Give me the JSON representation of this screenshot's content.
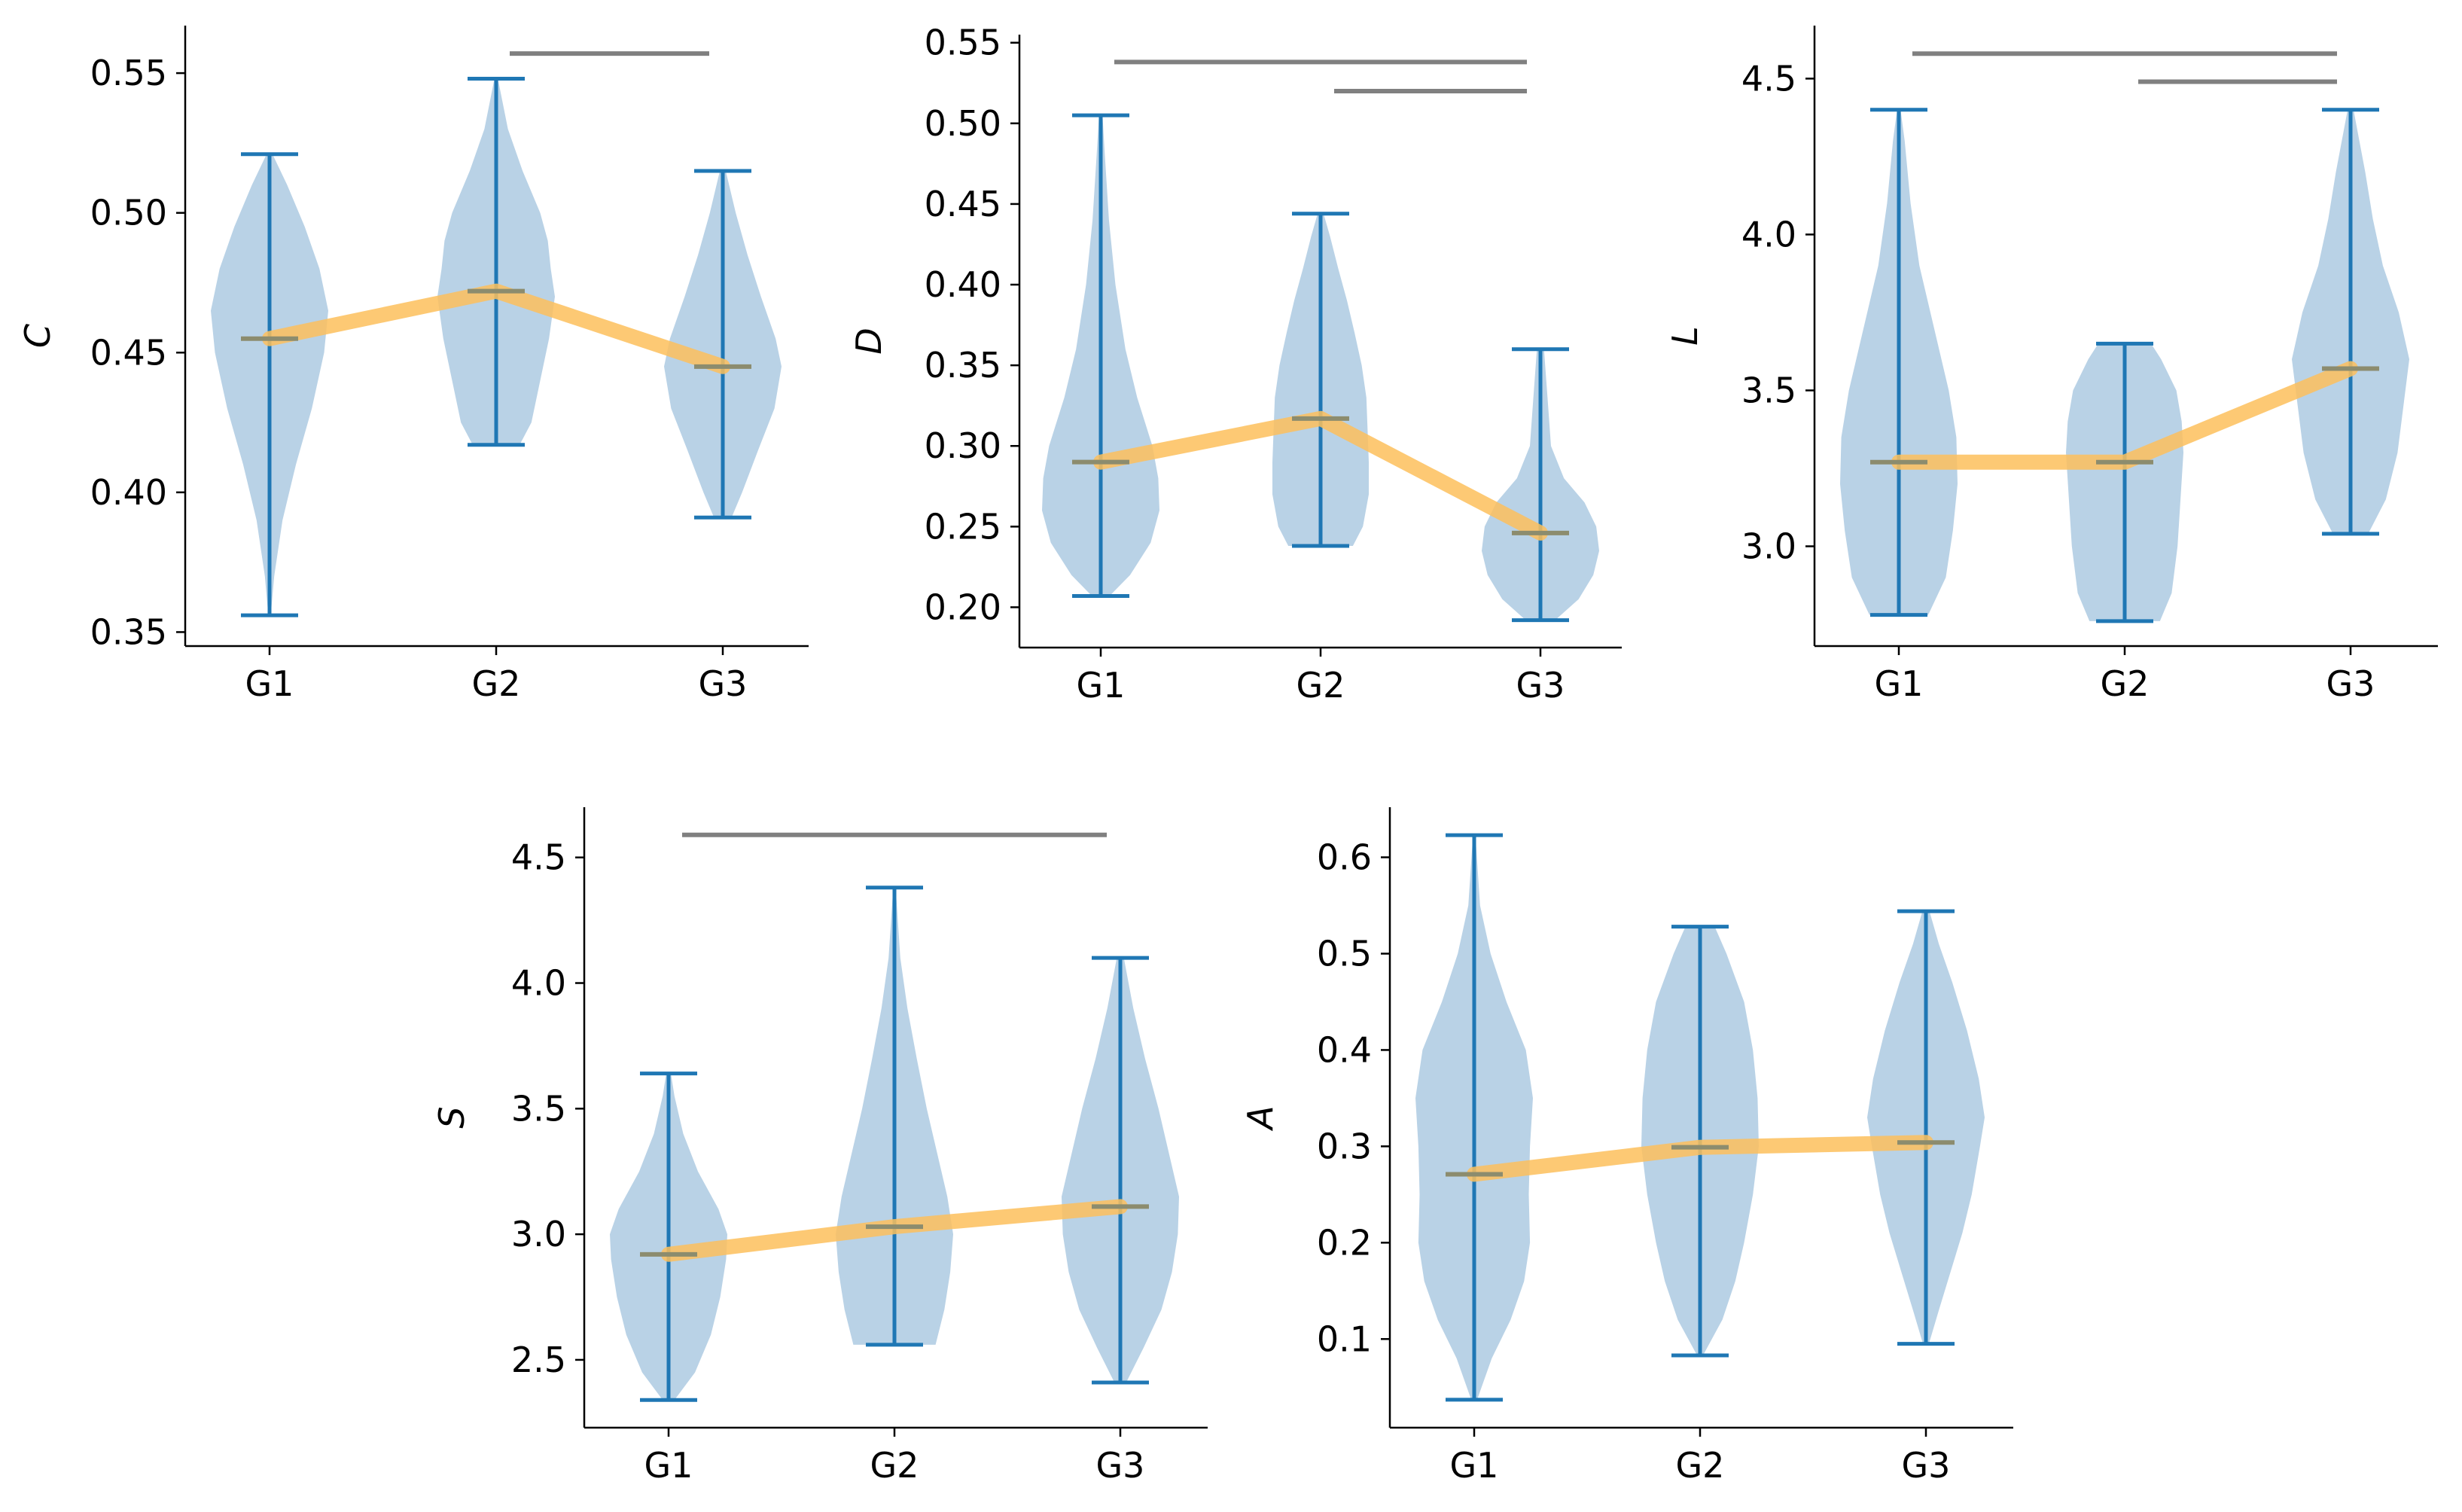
{
  "colors": {
    "violin_fill": "#b9d2e6",
    "whisker": "#1f77b4",
    "mean_line": "#fdbf5c",
    "median_marker": "#8c8c6e",
    "significance_bar": "#808080",
    "axis": "#000000"
  },
  "chart_data": [
    {
      "type": "violin",
      "ylabel": "C",
      "categories": [
        "G1",
        "G2",
        "G3"
      ],
      "ylim": [
        0.345,
        0.567
      ],
      "yticks": [
        0.35,
        0.4,
        0.45,
        0.5,
        0.55
      ],
      "ytick_labels": [
        "0.35",
        "0.40",
        "0.45",
        "0.50",
        "0.55"
      ],
      "min": [
        0.356,
        0.417,
        0.391
      ],
      "max": [
        0.521,
        0.548,
        0.515
      ],
      "median": [
        0.455,
        0.472,
        0.445
      ],
      "density": [
        [
          [
            0.356,
            0.02
          ],
          [
            0.37,
            0.08
          ],
          [
            0.39,
            0.22
          ],
          [
            0.41,
            0.45
          ],
          [
            0.43,
            0.72
          ],
          [
            0.45,
            0.93
          ],
          [
            0.465,
            1.0
          ],
          [
            0.48,
            0.85
          ],
          [
            0.495,
            0.6
          ],
          [
            0.51,
            0.3
          ],
          [
            0.521,
            0.05
          ]
        ],
        [
          [
            0.417,
            0.4
          ],
          [
            0.425,
            0.6
          ],
          [
            0.44,
            0.75
          ],
          [
            0.455,
            0.9
          ],
          [
            0.47,
            1.0
          ],
          [
            0.48,
            0.93
          ],
          [
            0.49,
            0.88
          ],
          [
            0.5,
            0.75
          ],
          [
            0.515,
            0.45
          ],
          [
            0.53,
            0.2
          ],
          [
            0.548,
            0.03
          ]
        ],
        [
          [
            0.391,
            0.15
          ],
          [
            0.4,
            0.33
          ],
          [
            0.415,
            0.6
          ],
          [
            0.43,
            0.88
          ],
          [
            0.445,
            1.0
          ],
          [
            0.455,
            0.9
          ],
          [
            0.47,
            0.65
          ],
          [
            0.485,
            0.42
          ],
          [
            0.5,
            0.22
          ],
          [
            0.515,
            0.05
          ]
        ]
      ],
      "significance": [
        {
          "from": "G2",
          "to": "G3",
          "y": 0.557
        }
      ]
    },
    {
      "type": "violin",
      "ylabel": "D",
      "categories": [
        "G1",
        "G2",
        "G3"
      ],
      "ylim": [
        0.175,
        0.555
      ],
      "yticks": [
        0.2,
        0.25,
        0.3,
        0.35,
        0.4,
        0.45,
        0.5,
        0.55
      ],
      "ytick_labels": [
        "0.20",
        "0.25",
        "0.30",
        "0.35",
        "0.40",
        "0.45",
        "0.50",
        "0.55"
      ],
      "min": [
        0.207,
        0.238,
        0.192
      ],
      "max": [
        0.505,
        0.444,
        0.36
      ],
      "median": [
        0.29,
        0.317,
        0.246
      ],
      "density": [
        [
          [
            0.207,
            0.15
          ],
          [
            0.22,
            0.5
          ],
          [
            0.24,
            0.85
          ],
          [
            0.26,
            1.0
          ],
          [
            0.28,
            0.98
          ],
          [
            0.3,
            0.88
          ],
          [
            0.33,
            0.62
          ],
          [
            0.36,
            0.42
          ],
          [
            0.4,
            0.25
          ],
          [
            0.44,
            0.14
          ],
          [
            0.48,
            0.07
          ],
          [
            0.505,
            0.03
          ]
        ],
        [
          [
            0.238,
            0.55
          ],
          [
            0.25,
            0.72
          ],
          [
            0.27,
            0.82
          ],
          [
            0.29,
            0.82
          ],
          [
            0.31,
            0.8
          ],
          [
            0.33,
            0.78
          ],
          [
            0.35,
            0.7
          ],
          [
            0.37,
            0.58
          ],
          [
            0.39,
            0.45
          ],
          [
            0.41,
            0.3
          ],
          [
            0.43,
            0.16
          ],
          [
            0.444,
            0.05
          ]
        ],
        [
          [
            0.192,
            0.25
          ],
          [
            0.205,
            0.65
          ],
          [
            0.22,
            0.9
          ],
          [
            0.235,
            1.0
          ],
          [
            0.25,
            0.95
          ],
          [
            0.265,
            0.75
          ],
          [
            0.28,
            0.4
          ],
          [
            0.3,
            0.18
          ],
          [
            0.33,
            0.12
          ],
          [
            0.36,
            0.06
          ]
        ]
      ],
      "significance": [
        {
          "from": "G1",
          "to": "G3",
          "y": 0.538
        },
        {
          "from": "G2",
          "to": "G3",
          "y": 0.52
        }
      ]
    },
    {
      "type": "violin",
      "ylabel": "L",
      "categories": [
        "G1",
        "G2",
        "G3"
      ],
      "ylim": [
        2.68,
        4.67
      ],
      "yticks": [
        3.0,
        3.5,
        4.0,
        4.5
      ],
      "ytick_labels": [
        "3.0",
        "3.5",
        "4.0",
        "4.5"
      ],
      "min": [
        2.78,
        2.76,
        3.04
      ],
      "max": [
        4.4,
        3.65,
        4.4
      ],
      "median": [
        3.27,
        3.27,
        3.57
      ],
      "density": [
        [
          [
            2.78,
            0.5
          ],
          [
            2.9,
            0.8
          ],
          [
            3.05,
            0.92
          ],
          [
            3.2,
            1.0
          ],
          [
            3.35,
            0.98
          ],
          [
            3.5,
            0.85
          ],
          [
            3.7,
            0.6
          ],
          [
            3.9,
            0.35
          ],
          [
            4.1,
            0.2
          ],
          [
            4.3,
            0.1
          ],
          [
            4.4,
            0.03
          ]
        ],
        [
          [
            2.76,
            0.6
          ],
          [
            2.85,
            0.8
          ],
          [
            3.0,
            0.9
          ],
          [
            3.15,
            0.95
          ],
          [
            3.3,
            1.0
          ],
          [
            3.4,
            0.97
          ],
          [
            3.5,
            0.88
          ],
          [
            3.6,
            0.62
          ],
          [
            3.65,
            0.45
          ]
        ],
        [
          [
            3.04,
            0.3
          ],
          [
            3.15,
            0.6
          ],
          [
            3.3,
            0.8
          ],
          [
            3.45,
            0.9
          ],
          [
            3.6,
            1.0
          ],
          [
            3.75,
            0.82
          ],
          [
            3.9,
            0.55
          ],
          [
            4.05,
            0.38
          ],
          [
            4.2,
            0.25
          ],
          [
            4.3,
            0.15
          ],
          [
            4.4,
            0.05
          ]
        ]
      ],
      "significance": [
        {
          "from": "G1",
          "to": "G3",
          "y": 4.58
        },
        {
          "from": "G2",
          "to": "G3",
          "y": 4.49
        }
      ]
    },
    {
      "type": "violin",
      "ylabel": "S",
      "categories": [
        "G1",
        "G2",
        "G3"
      ],
      "ylim": [
        2.23,
        4.7
      ],
      "yticks": [
        2.5,
        3.0,
        3.5,
        4.0,
        4.5
      ],
      "ytick_labels": [
        "2.5",
        "3.0",
        "3.5",
        "4.0",
        "4.5"
      ],
      "min": [
        2.34,
        2.56,
        2.41
      ],
      "max": [
        3.64,
        4.38,
        4.1
      ],
      "median": [
        2.92,
        3.03,
        3.11
      ],
      "density": [
        [
          [
            2.34,
            0.1
          ],
          [
            2.45,
            0.45
          ],
          [
            2.6,
            0.72
          ],
          [
            2.75,
            0.88
          ],
          [
            2.9,
            0.98
          ],
          [
            3.0,
            1.0
          ],
          [
            3.1,
            0.85
          ],
          [
            3.25,
            0.5
          ],
          [
            3.4,
            0.25
          ],
          [
            3.55,
            0.1
          ],
          [
            3.64,
            0.04
          ]
        ],
        [
          [
            2.56,
            0.7
          ],
          [
            2.7,
            0.85
          ],
          [
            2.85,
            0.95
          ],
          [
            3.0,
            1.0
          ],
          [
            3.15,
            0.9
          ],
          [
            3.3,
            0.75
          ],
          [
            3.5,
            0.55
          ],
          [
            3.7,
            0.38
          ],
          [
            3.9,
            0.22
          ],
          [
            4.1,
            0.1
          ],
          [
            4.38,
            0.02
          ]
        ],
        [
          [
            2.41,
            0.1
          ],
          [
            2.55,
            0.4
          ],
          [
            2.7,
            0.7
          ],
          [
            2.85,
            0.88
          ],
          [
            3.0,
            0.98
          ],
          [
            3.15,
            1.0
          ],
          [
            3.3,
            0.85
          ],
          [
            3.5,
            0.65
          ],
          [
            3.7,
            0.42
          ],
          [
            3.9,
            0.22
          ],
          [
            4.1,
            0.06
          ]
        ]
      ],
      "significance": [
        {
          "from": "G1",
          "to": "G3",
          "y": 4.59
        }
      ]
    },
    {
      "type": "violin",
      "ylabel": "A",
      "categories": [
        "G1",
        "G2",
        "G3"
      ],
      "ylim": [
        0.008,
        0.652
      ],
      "yticks": [
        0.1,
        0.2,
        0.3,
        0.4,
        0.5,
        0.6
      ],
      "ytick_labels": [
        "0.1",
        "0.2",
        "0.3",
        "0.4",
        "0.5",
        "0.6"
      ],
      "min": [
        0.037,
        0.083,
        0.095
      ],
      "max": [
        0.623,
        0.528,
        0.544
      ],
      "median": [
        0.271,
        0.299,
        0.304
      ],
      "density": [
        [
          [
            0.037,
            0.05
          ],
          [
            0.08,
            0.3
          ],
          [
            0.12,
            0.62
          ],
          [
            0.16,
            0.85
          ],
          [
            0.2,
            0.95
          ],
          [
            0.25,
            0.93
          ],
          [
            0.3,
            0.95
          ],
          [
            0.35,
            1.0
          ],
          [
            0.4,
            0.88
          ],
          [
            0.45,
            0.55
          ],
          [
            0.5,
            0.28
          ],
          [
            0.55,
            0.1
          ],
          [
            0.623,
            0.02
          ]
        ],
        [
          [
            0.083,
            0.05
          ],
          [
            0.12,
            0.38
          ],
          [
            0.16,
            0.6
          ],
          [
            0.2,
            0.75
          ],
          [
            0.25,
            0.9
          ],
          [
            0.3,
            1.0
          ],
          [
            0.35,
            0.98
          ],
          [
            0.4,
            0.9
          ],
          [
            0.45,
            0.75
          ],
          [
            0.5,
            0.45
          ],
          [
            0.528,
            0.25
          ]
        ],
        [
          [
            0.095,
            0.05
          ],
          [
            0.13,
            0.22
          ],
          [
            0.17,
            0.42
          ],
          [
            0.21,
            0.62
          ],
          [
            0.25,
            0.78
          ],
          [
            0.3,
            0.92
          ],
          [
            0.33,
            1.0
          ],
          [
            0.37,
            0.9
          ],
          [
            0.42,
            0.7
          ],
          [
            0.47,
            0.45
          ],
          [
            0.51,
            0.22
          ],
          [
            0.544,
            0.06
          ]
        ]
      ],
      "significance": []
    }
  ]
}
